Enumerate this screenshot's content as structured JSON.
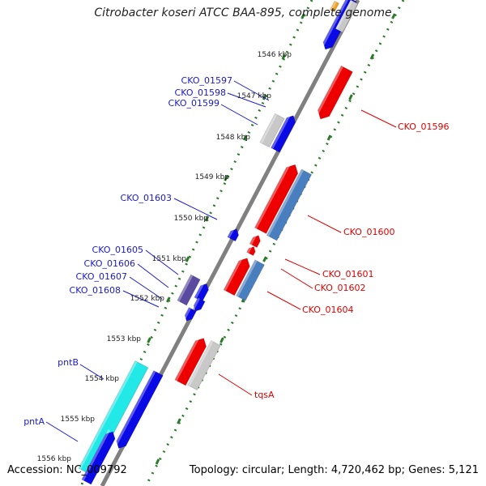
{
  "map": {
    "title": "Citrobacter koseri ATCC BAA-895, complete genome",
    "accession_label": "Accession: NC_009792",
    "summary_label": "Topology: circular; Length: 4,720,462 bp; Genes: 5,121"
  },
  "ticks": [
    "1546 kbp",
    "1547 kbp",
    "1548 kbp",
    "1549 kbp",
    "1550 kbp",
    "1551 kbp",
    "1552 kbp",
    "1553 kbp",
    "1554 kbp",
    "1555 kbp",
    "1556 kbp"
  ],
  "colors": {
    "backbone": "#808080",
    "tick": "#2a7a2a",
    "red": "#ee0000",
    "blue": "#0a0ae6",
    "steel": "#4a7fbf",
    "gray": "#c8c8c8",
    "cyan": "#22e8e8",
    "purple": "#5a4aa0",
    "orange": "#f0a020",
    "label_left": "#1a1acc",
    "label_right": "#dd0000"
  },
  "labels_left": [
    "CKO_01597",
    "CKO_01598",
    "CKO_01599",
    "CKO_01603",
    "CKO_01605",
    "CKO_01606",
    "CKO_01607",
    "CKO_01608",
    "pntB",
    "pntA"
  ],
  "labels_right": [
    "CKO_01596",
    "CKO_01600",
    "CKO_01601",
    "CKO_01602",
    "CKO_01604",
    "tqsA"
  ]
}
